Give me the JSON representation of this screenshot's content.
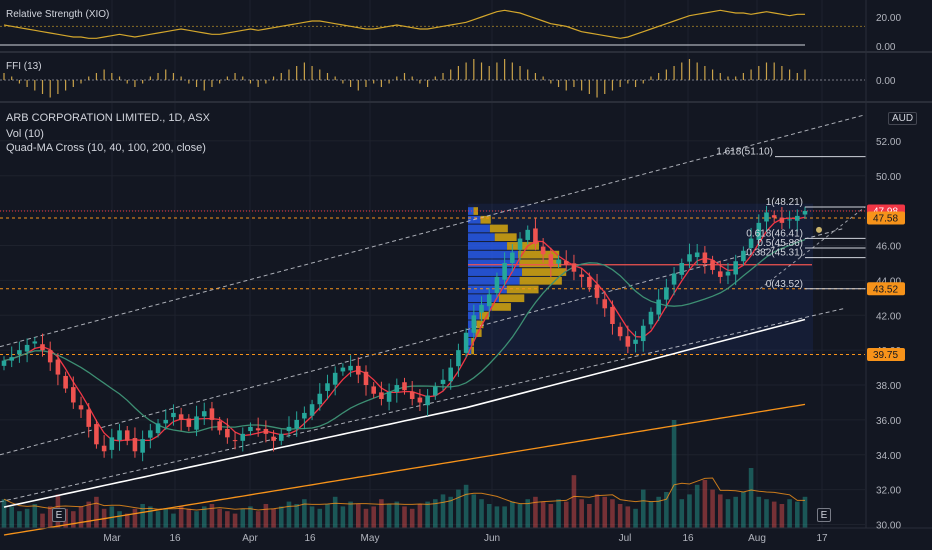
{
  "panes": {
    "rsi": {
      "label": "Relative Strength (XIO)",
      "ticks": [
        "20.00",
        "0.00"
      ]
    },
    "ffi": {
      "label": "FFI (13)",
      "ticks": [
        "0.00"
      ]
    }
  },
  "main": {
    "title": "ARB CORPORATION LIMITED., 1D, ASX",
    "volume_label": "Vol (10)",
    "ma_label": "Quad-MA Cross (10, 40, 100, 200, close)",
    "currency": "AUD",
    "e_button": "E"
  },
  "colors": {
    "bg": "#131722",
    "up": "#26a69a",
    "down": "#ef5350",
    "ma10": "#f23645",
    "ma40": "#3d8f73",
    "ma100": "#ffffff",
    "ma200": "#f7931a",
    "dashed": "#d1d4dc",
    "orange_level": "#f7931a",
    "rsi_line": "#d4a72c",
    "vp_up": "#2962ff",
    "vp_down": "#f0b90b"
  },
  "chart_data": {
    "type": "candlestick",
    "y_axis": {
      "ticks": [
        "52.00",
        "50.00",
        "48.00",
        "46.00",
        "44.00",
        "42.00",
        "40.00",
        "38.00",
        "36.00",
        "34.00",
        "32.00",
        "30.00"
      ],
      "ylim": [
        29.8,
        53.2
      ]
    },
    "x_axis": {
      "ticks": [
        "Mar",
        "16",
        "Apr",
        "16",
        "May",
        "Jun",
        "Jul",
        "16",
        "Aug",
        "17"
      ]
    },
    "price_badges": [
      {
        "text": "47.98",
        "value": 47.98,
        "color": "#f23645"
      },
      {
        "text": "47.58",
        "value": 47.58,
        "color": "#f7931a"
      },
      {
        "text": "43.52",
        "value": 43.52,
        "color": "#f7931a"
      },
      {
        "text": "39.75",
        "value": 39.75,
        "color": "#f7931a"
      }
    ],
    "fib_levels": [
      {
        "label": "1.618(51.10)",
        "value": 51.1
      },
      {
        "label": "1(48.21)",
        "value": 48.21
      },
      {
        "label": "0.618(46.41)",
        "value": 46.41
      },
      {
        "label": "0.5(45.86)",
        "value": 45.86
      },
      {
        "label": "0.382(45.31)",
        "value": 45.31
      },
      {
        "label": "0(43.52)",
        "value": 43.52
      }
    ],
    "closes": [
      39.4,
      39.6,
      40.0,
      40.3,
      40.5,
      40.0,
      39.3,
      38.6,
      37.8,
      37.0,
      36.6,
      35.6,
      34.6,
      34.2,
      35.0,
      35.4,
      34.8,
      34.2,
      34.9,
      35.4,
      35.8,
      36.0,
      36.4,
      36.0,
      35.6,
      36.2,
      36.5,
      36.0,
      35.4,
      35.0,
      34.8,
      35.2,
      35.6,
      35.4,
      35.2,
      34.8,
      35.2,
      35.6,
      36.0,
      36.4,
      36.9,
      37.5,
      38.1,
      38.7,
      39.0,
      39.1,
      38.6,
      38.0,
      37.5,
      37.2,
      37.6,
      38.0,
      37.7,
      37.2,
      37.0,
      37.4,
      37.9,
      38.3,
      39.0,
      40.0,
      41.0,
      42.0,
      42.6,
      43.2,
      44.2,
      45.0,
      45.6,
      46.4,
      46.9,
      46.1,
      45.5,
      44.8,
      45.2,
      44.9,
      44.5,
      44.2,
      43.6,
      43.0,
      42.4,
      41.5,
      40.8,
      40.2,
      40.6,
      41.4,
      42.2,
      42.9,
      43.6,
      44.4,
      45.0,
      45.5,
      45.6,
      45.0,
      44.6,
      44.2,
      44.5,
      45.1,
      45.7,
      46.4,
      47.3,
      47.9,
      47.6,
      47.3,
      47.5,
      47.7,
      47.98
    ],
    "volumes": [
      12,
      9,
      7,
      8,
      10,
      6,
      9,
      14,
      8,
      7,
      9,
      11,
      13,
      8,
      9,
      7,
      6,
      8,
      10,
      9,
      7,
      8,
      6,
      9,
      8,
      7,
      9,
      10,
      8,
      7,
      6,
      8,
      9,
      7,
      10,
      8,
      9,
      11,
      10,
      12,
      9,
      8,
      10,
      13,
      9,
      11,
      10,
      8,
      9,
      12,
      10,
      11,
      9,
      8,
      10,
      11,
      12,
      14,
      13,
      16,
      18,
      14,
      12,
      10,
      9,
      9,
      11,
      10,
      12,
      13,
      11,
      10,
      12,
      11,
      22,
      12,
      10,
      14,
      13,
      12,
      10,
      9,
      8,
      16,
      11,
      13,
      15,
      45,
      12,
      14,
      18,
      20,
      16,
      14,
      12,
      13,
      15,
      25,
      13,
      12,
      11,
      10,
      12,
      11,
      13
    ],
    "ffi_values": [
      1,
      0.5,
      -0.5,
      -1,
      -1.5,
      -2,
      -2.5,
      -2,
      -1.5,
      -1,
      -0.5,
      0.5,
      1,
      1.5,
      1,
      0.5,
      -0.5,
      -1,
      -0.5,
      0.5,
      1,
      1.5,
      1,
      0.5,
      -0.5,
      -1,
      -1.5,
      -1,
      -0.5,
      0.5,
      1,
      0.5,
      -0.5,
      -1,
      -0.5,
      0.5,
      1,
      1.5,
      2,
      2.5,
      2,
      1.5,
      1,
      0.5,
      -0.5,
      -1,
      -1.5,
      -1,
      -0.5,
      -1,
      -0.5,
      0.5,
      1,
      0.5,
      -0.5,
      -1,
      0.5,
      1,
      1.5,
      2,
      2.5,
      3,
      2.5,
      2,
      2.5,
      3,
      2.5,
      2,
      1.5,
      1,
      0.5,
      -0.5,
      -1,
      -1.5,
      -1,
      -1.5,
      -2,
      -2.5,
      -2,
      -1.5,
      -1,
      -0.5,
      -1,
      -0.5,
      0.5,
      1,
      1.5,
      2,
      2.5,
      3,
      2.5,
      2,
      1.5,
      1,
      0.5,
      0.5,
      1,
      1.5,
      2,
      2.5,
      2.5,
      2,
      1.5,
      1,
      1.5
    ],
    "rsi_values": [
      15,
      14,
      13,
      12,
      11,
      10,
      9,
      8,
      7,
      6,
      6,
      5,
      5,
      6,
      7,
      8,
      7,
      6,
      7,
      8,
      9,
      10,
      11,
      12,
      11,
      10,
      9,
      8,
      8,
      9,
      10,
      11,
      12,
      11,
      12,
      13,
      14,
      15,
      16,
      17,
      18,
      18,
      17,
      16,
      15,
      14,
      13,
      12,
      12,
      13,
      14,
      15,
      14,
      13,
      12,
      12,
      13,
      14,
      15,
      16,
      17,
      19,
      21,
      23,
      25,
      26,
      25,
      24,
      22,
      20,
      18,
      16,
      15,
      14,
      12,
      10,
      9,
      8,
      7,
      6,
      5,
      6,
      8,
      10,
      12,
      14,
      16,
      18,
      20,
      22,
      23,
      24,
      25,
      26,
      25,
      24,
      24,
      23,
      24,
      25,
      24,
      23,
      22,
      23,
      23
    ]
  }
}
